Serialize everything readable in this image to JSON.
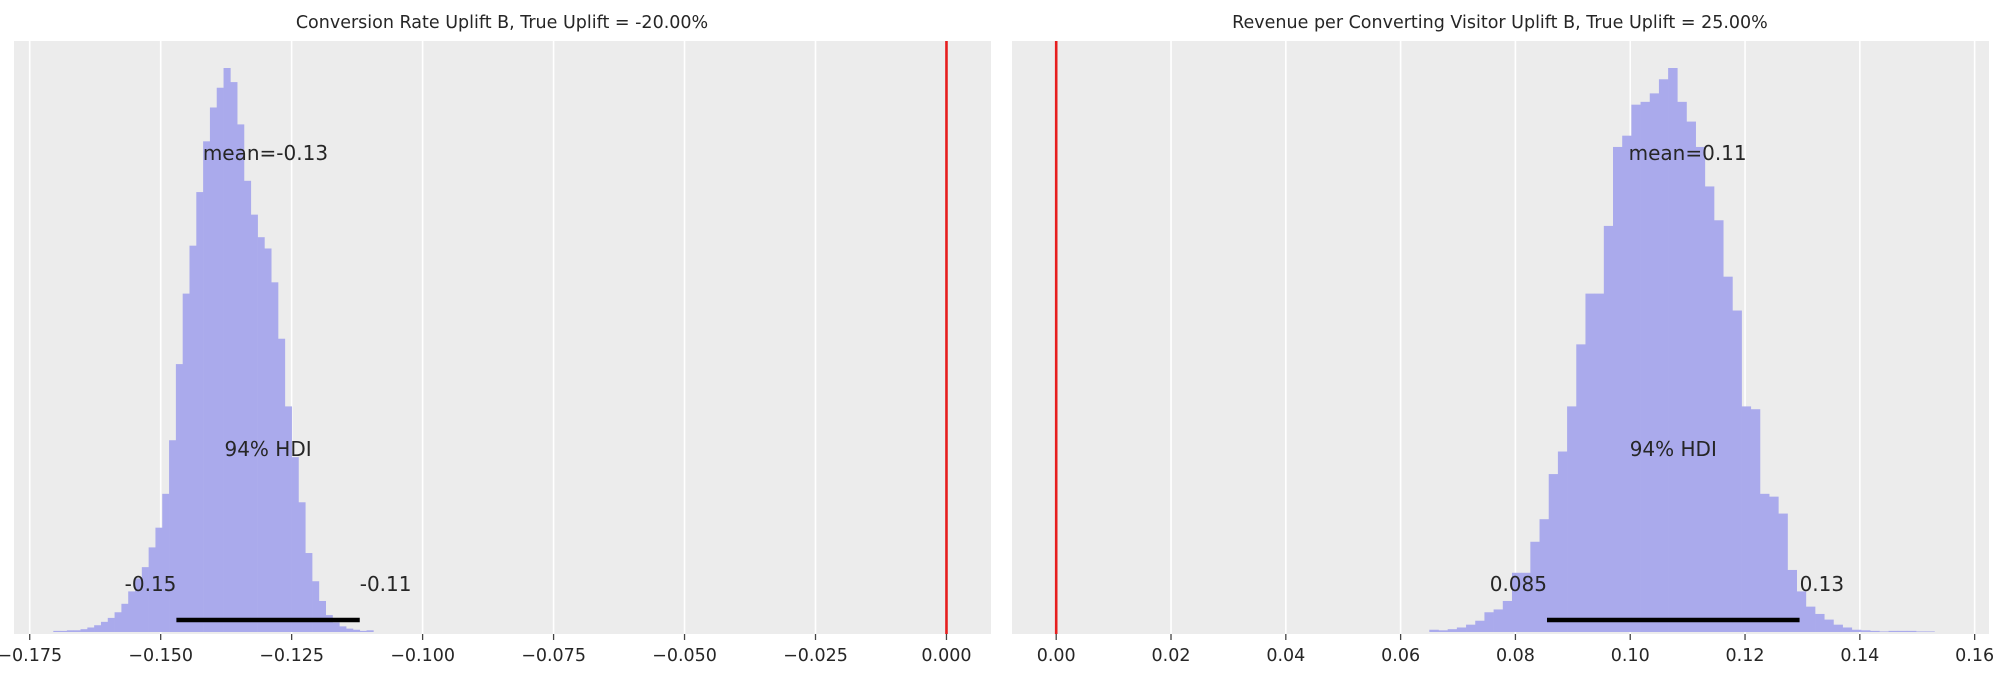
{
  "figure": {
    "background": "#ffffff",
    "axes_background": "#ececec",
    "grid_color": "#ffffff",
    "hist_color": "#aaaaec",
    "hdi_color": "#000000",
    "ref_color": "#e61e1e"
  },
  "chart_data": [
    {
      "type": "histogram",
      "title": "Conversion Rate Uplift B, True Uplift = -20.00%",
      "xlabel": "",
      "ylabel": "",
      "xlim": [
        -0.178,
        0.0085
      ],
      "xticks": [
        -0.175,
        -0.15,
        -0.125,
        -0.1,
        -0.075,
        -0.05,
        -0.025,
        0.0
      ],
      "xtick_labels": [
        "−0.175",
        "−0.150",
        "−0.125",
        "−0.100",
        "−0.075",
        "−0.050",
        "−0.025",
        "0.000"
      ],
      "grid": "vertical",
      "bins": {
        "start": -0.1705,
        "width": 0.0013,
        "heights": [
          0.002,
          0.002,
          0.003,
          0.003,
          0.005,
          0.008,
          0.012,
          0.018,
          0.025,
          0.035,
          0.05,
          0.072,
          0.095,
          0.115,
          0.15,
          0.185,
          0.245,
          0.34,
          0.475,
          0.6,
          0.685,
          0.78,
          0.87,
          0.93,
          0.965,
          1.0,
          0.975,
          0.9,
          0.8,
          0.74,
          0.7,
          0.68,
          0.62,
          0.52,
          0.4,
          0.31,
          0.23,
          0.14,
          0.09,
          0.055,
          0.03,
          0.017,
          0.01,
          0.006,
          0.004,
          0.002,
          0.003
        ]
      },
      "reference_line": {
        "x": 0.0
      },
      "mean": {
        "label": "mean=-0.13",
        "value": -0.13
      },
      "hdi": {
        "label": "94% HDI",
        "low": -0.147,
        "high": -0.112,
        "low_label": "-0.15",
        "high_label": "-0.11"
      }
    },
    {
      "type": "histogram",
      "title": "Revenue per Converting Visitor Uplift B, True Uplift = 25.00%",
      "xlabel": "",
      "ylabel": "",
      "xlim": [
        -0.0077,
        0.1625
      ],
      "xticks": [
        0.0,
        0.02,
        0.04,
        0.06,
        0.08,
        0.1,
        0.12,
        0.14,
        0.16
      ],
      "xtick_labels": [
        "0.00",
        "0.02",
        "0.04",
        "0.06",
        "0.08",
        "0.10",
        "0.12",
        "0.14",
        "0.16"
      ],
      "grid": "vertical",
      "bins": {
        "start": 0.065,
        "width": 0.0016,
        "heights": [
          0.004,
          0.003,
          0.005,
          0.008,
          0.013,
          0.02,
          0.035,
          0.04,
          0.055,
          0.105,
          0.105,
          0.16,
          0.2,
          0.28,
          0.32,
          0.4,
          0.51,
          0.6,
          0.6,
          0.72,
          0.86,
          0.88,
          0.935,
          0.94,
          0.955,
          0.98,
          1.0,
          0.94,
          0.905,
          0.86,
          0.79,
          0.73,
          0.63,
          0.57,
          0.4,
          0.395,
          0.245,
          0.24,
          0.21,
          0.11,
          0.072,
          0.045,
          0.032,
          0.022,
          0.013,
          0.008,
          0.004,
          0.003,
          0.002,
          0.001,
          0.002,
          0.002,
          0.002,
          0.001,
          0.001
        ]
      },
      "reference_line": {
        "x": 0.0
      },
      "mean": {
        "label": "mean=0.11",
        "value": 0.11
      },
      "hdi": {
        "label": "94% HDI",
        "low": 0.0855,
        "high": 0.1295,
        "low_label": "0.085",
        "high_label": "0.13"
      }
    }
  ]
}
